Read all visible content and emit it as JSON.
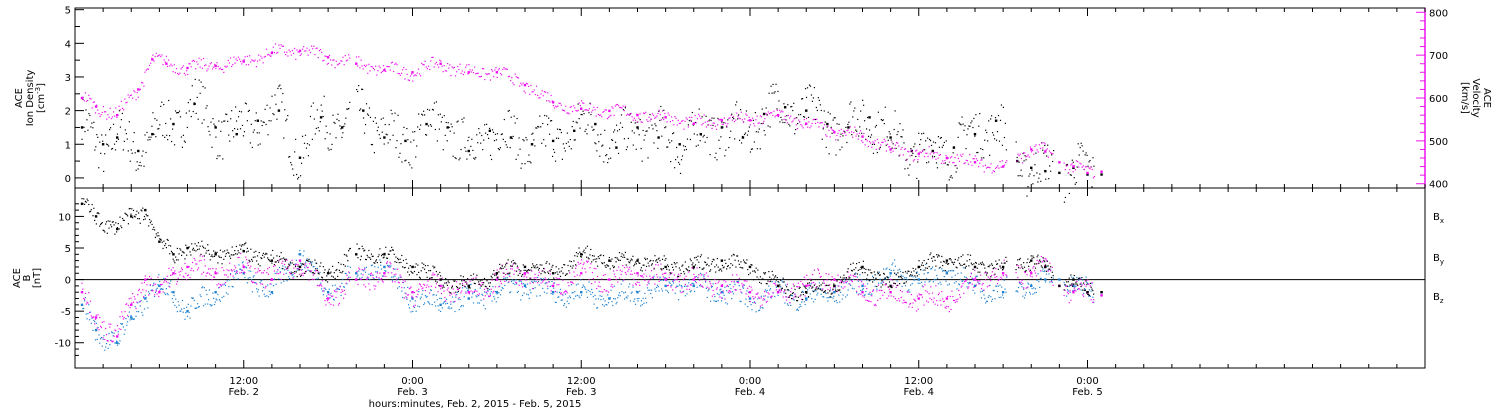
{
  "chart_data": [
    {
      "type": "scatter",
      "panel": "top",
      "xlabel": "hours:minutes, Feb.  2, 2015 - Feb.  5, 2015",
      "ylabel_left": [
        "ACE",
        "Ion Density",
        "[cm",
        "-3",
        "]"
      ],
      "ylabel_right": [
        "ACE",
        "Velocity",
        "[km/s]"
      ],
      "x_range_hours": [
        0,
        96
      ],
      "ylim_left": [
        -0.3,
        5.05
      ],
      "yticks_left": [
        "0",
        "1",
        "2",
        "3",
        "4",
        "5"
      ],
      "ylim_right": [
        390,
        810
      ],
      "yticks_right": [
        "400",
        "500",
        "600",
        "700",
        "800"
      ],
      "x_ticks": [
        {
          "hour": 12,
          "time": "12:00",
          "date": "Feb. 2"
        },
        {
          "hour": 24,
          "time": "0:00",
          "date": "Feb. 3"
        },
        {
          "hour": 36,
          "time": "12:00",
          "date": "Feb. 3"
        },
        {
          "hour": 48,
          "time": "0:00",
          "date": "Feb. 4"
        },
        {
          "hour": 60,
          "time": "12:00",
          "date": "Feb. 4"
        },
        {
          "hour": 72,
          "time": "0:00",
          "date": "Feb. 5"
        }
      ],
      "series": [
        {
          "label": "Ion Density",
          "color": "#000000",
          "axis": "left",
          "x": [
            0.5,
            2,
            3,
            4.5,
            5.5,
            7,
            8.5,
            10,
            11.5,
            13,
            14.5,
            16,
            17.5,
            19,
            20.5,
            22,
            23.5,
            25,
            26.5,
            28,
            29.5,
            31,
            32.5,
            34,
            35.5,
            37,
            38.5,
            40,
            41.5,
            43,
            44.5,
            46,
            47.5,
            49,
            50.5,
            52,
            53.5,
            55,
            56.5,
            58,
            59.5,
            61,
            62.5,
            64,
            65.5,
            67,
            68,
            69,
            70,
            71,
            72,
            73
          ],
          "y": [
            1.5,
            1.0,
            1.2,
            0.8,
            1.3,
            1.6,
            2.2,
            1.5,
            1.3,
            1.7,
            2.0,
            0.6,
            1.8,
            1.5,
            2.0,
            1.2,
            1.1,
            1.6,
            1.5,
            0.8,
            1.4,
            1.2,
            1.0,
            1.1,
            1.4,
            1.6,
            0.9,
            1.5,
            1.2,
            1.0,
            1.3,
            1.5,
            1.2,
            1.9,
            2.1,
            2.0,
            1.6,
            1.5,
            1.8,
            1.2,
            0.8,
            0.8,
            0.9,
            1.3,
            1.7,
            0.5,
            0.3,
            0.2,
            0.15,
            0.3,
            0.1,
            0.1
          ]
        },
        {
          "label": "Velocity",
          "color": "#ee11ee",
          "axis": "right",
          "x": [
            0.5,
            1.5,
            3,
            4.5,
            5.5,
            6.5,
            8,
            10,
            12,
            14,
            16,
            18,
            20,
            22,
            24,
            26,
            28,
            30,
            32,
            34,
            36,
            38,
            40,
            42,
            44,
            46,
            48,
            50,
            52,
            54,
            56,
            58,
            60,
            62,
            64,
            66,
            68,
            69,
            70,
            71,
            72,
            73
          ],
          "y": [
            600,
            580,
            560,
            620,
            690,
            680,
            670,
            675,
            685,
            705,
            710,
            695,
            680,
            665,
            660,
            680,
            660,
            660,
            630,
            590,
            575,
            570,
            560,
            555,
            540,
            548,
            548,
            560,
            540,
            520,
            510,
            480,
            470,
            460,
            450,
            440,
            480,
            475,
            450,
            440,
            425,
            428
          ]
        }
      ]
    },
    {
      "type": "scatter",
      "panel": "bottom",
      "ylabel_left": [
        "ACE",
        "B",
        "[nT]"
      ],
      "x_range_hours": [
        0,
        96
      ],
      "ylim": [
        -14,
        14.5
      ],
      "yticks": [
        "10",
        "5",
        "0",
        "-5",
        "-10"
      ],
      "zero_line": true,
      "legend": [
        {
          "name": "B",
          "sub": "x",
          "color": "#000000"
        },
        {
          "name": "B",
          "sub": "y",
          "color": "#1f82d0"
        },
        {
          "name": "B",
          "sub": "z",
          "color": "#ee11ee"
        }
      ],
      "series": [
        {
          "name": "Bx",
          "color": "#000000",
          "x": [
            0.5,
            1.5,
            3,
            4,
            5,
            6,
            7,
            8,
            10,
            12,
            14,
            16,
            18,
            20,
            22,
            24,
            26,
            28,
            30,
            32,
            34,
            36,
            38,
            40,
            42,
            44,
            46,
            48,
            50,
            52,
            54,
            56,
            58,
            60,
            62,
            64,
            66,
            68,
            69,
            70,
            71,
            72,
            73
          ],
          "y": [
            12,
            10,
            8,
            10,
            11,
            6,
            4,
            5,
            4,
            4.5,
            3,
            2,
            1,
            4,
            4,
            2,
            0,
            -1,
            1,
            2,
            1,
            4,
            3,
            3,
            2,
            2,
            3,
            2,
            -1,
            -2,
            -1,
            2,
            -1,
            2,
            3,
            2,
            2,
            3,
            2,
            -1,
            0,
            -2,
            -2
          ]
        },
        {
          "name": "By",
          "color": "#1f82d0",
          "x": [
            0.5,
            1.5,
            3,
            4,
            5,
            6,
            7,
            8,
            10,
            12,
            14,
            16,
            18,
            20,
            22,
            24,
            26,
            28,
            30,
            32,
            34,
            36,
            38,
            40,
            42,
            44,
            46,
            48,
            50,
            52,
            54,
            56,
            58,
            60,
            62,
            64,
            66,
            68,
            69,
            70,
            71,
            72,
            73
          ],
          "y": [
            -4,
            -8,
            -10,
            -6,
            -3,
            -1,
            -2,
            -5,
            -2,
            1,
            -2,
            4,
            -2,
            1,
            2,
            -3,
            -4,
            -3,
            -2,
            -1,
            -2,
            -2,
            -3,
            -2,
            -1,
            -1,
            -2,
            -3,
            -2,
            -3,
            -2,
            -1,
            1,
            0,
            1,
            -1,
            -2,
            -1,
            0,
            0,
            -1,
            -2,
            -2
          ]
        },
        {
          "name": "Bz",
          "color": "#ee11ee",
          "x": [
            0.5,
            1.5,
            3,
            4,
            5,
            6,
            7,
            8,
            10,
            12,
            14,
            16,
            18,
            20,
            22,
            24,
            26,
            28,
            30,
            32,
            34,
            36,
            38,
            40,
            42,
            44,
            46,
            48,
            50,
            52,
            54,
            56,
            58,
            60,
            62,
            64,
            66,
            68,
            69,
            70,
            71,
            72,
            73
          ],
          "y": [
            -2,
            -6,
            -9,
            -4,
            0,
            -2,
            1,
            2,
            1,
            2,
            0,
            3,
            -3,
            0,
            1,
            -2,
            -1,
            -2,
            0,
            1,
            -1,
            1,
            0,
            1,
            0,
            0,
            -1,
            -2,
            -2,
            -1,
            0,
            -2,
            -2,
            -3,
            -3,
            0,
            1,
            1,
            2,
            -1,
            -2,
            -2,
            -2.5
          ]
        }
      ]
    }
  ]
}
